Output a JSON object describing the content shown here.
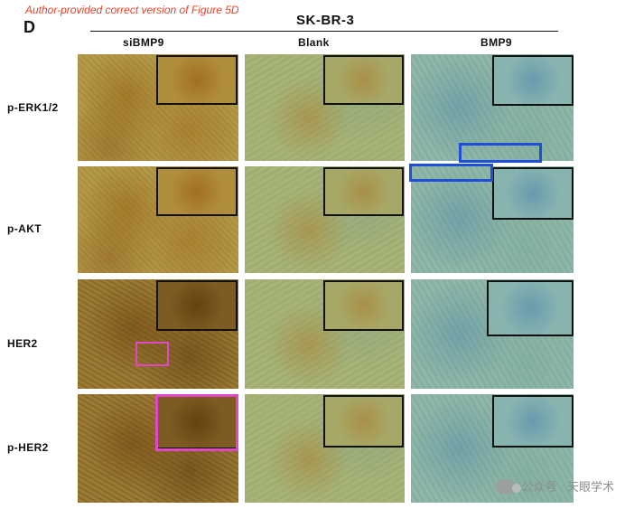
{
  "figure": {
    "note": "Author-provided correct version of Figure 5D",
    "panel_letter": "D",
    "cell_line": "SK-BR-3",
    "columns": [
      "siBMP9",
      "Blank",
      "BMP9"
    ],
    "rows": [
      "p-ERK1/2",
      "p-AKT",
      "HER2",
      "p-HER2"
    ],
    "highlight_colors": {
      "blue": "#1e4fd8",
      "pink": "#e048c8",
      "note": "#e8422a"
    }
  },
  "watermark": {
    "text": "公众号 · 天眼学术",
    "icon": "wechat-icon"
  }
}
